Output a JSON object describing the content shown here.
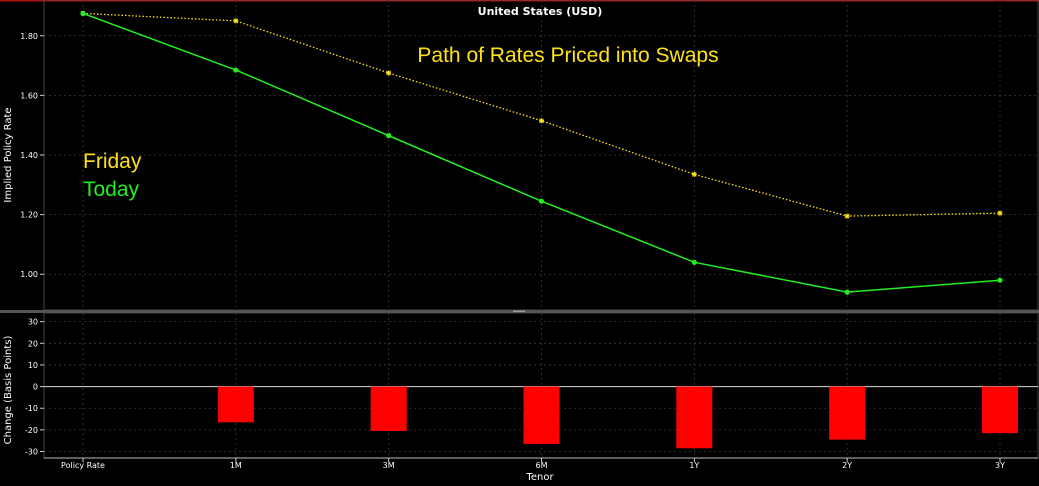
{
  "chart_data": [
    {
      "type": "line",
      "title": "United States (USD)",
      "annotation": "Path of Rates Priced into Swaps",
      "ylabel": "Implied Policy Rate",
      "categories": [
        "Policy Rate",
        "1M",
        "3M",
        "6M",
        "1Y",
        "2Y",
        "3Y"
      ],
      "ylim": [
        0.88,
        1.92
      ],
      "yticks": [
        "1.00",
        "1.20",
        "1.40",
        "1.60",
        "1.80"
      ],
      "grid": true,
      "series": [
        {
          "name": "Friday",
          "color": "#ffe11a",
          "style": "dotted",
          "marker": "star",
          "values": [
            1.875,
            1.85,
            1.675,
            1.515,
            1.335,
            1.195,
            1.205
          ]
        },
        {
          "name": "Today",
          "color": "#22ee22",
          "style": "solid",
          "marker": "circle",
          "values": [
            1.875,
            1.685,
            1.465,
            1.245,
            1.04,
            0.94,
            0.98
          ]
        }
      ],
      "legend": [
        "Friday",
        "Today"
      ],
      "legend_position": "left"
    },
    {
      "type": "bar",
      "ylabel": "Change (Basis Points)",
      "xlabel": "Tenor",
      "categories": [
        "Policy Rate",
        "1M",
        "3M",
        "6M",
        "1Y",
        "2Y",
        "3Y"
      ],
      "ylim": [
        -33,
        34
      ],
      "yticks": [
        "30",
        "20",
        "10",
        "0",
        "-10",
        "-20",
        "-30"
      ],
      "bar_color": "#ff0000",
      "values": [
        0,
        -16.5,
        -20.5,
        -26.5,
        -28.5,
        -24.5,
        -21.5
      ],
      "grid": true
    }
  ]
}
